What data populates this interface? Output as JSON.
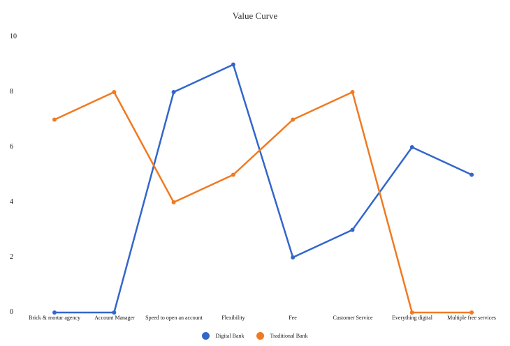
{
  "chart_data": {
    "type": "line",
    "title": "Value Curve",
    "xlabel": "",
    "ylabel": "",
    "ylim": [
      0,
      10
    ],
    "yticks": [
      "0",
      "2",
      "4",
      "6",
      "8",
      "10"
    ],
    "grid": false,
    "legend_position": "bottom",
    "categories": [
      "Brick & mortar agency",
      "Account Manager",
      "Speed to open an account",
      "Flexibility",
      "Fee",
      "Customer Service",
      "Everything digital",
      "Multiple free services"
    ],
    "series": [
      {
        "name": "Digital Bank",
        "color": "#3366cc",
        "values": [
          0,
          0,
          8,
          9,
          2,
          3,
          6,
          5
        ]
      },
      {
        "name": "Traditional Bank",
        "color": "#f07a22",
        "values": [
          7,
          8,
          4,
          5,
          7,
          8,
          0,
          0
        ]
      }
    ]
  }
}
